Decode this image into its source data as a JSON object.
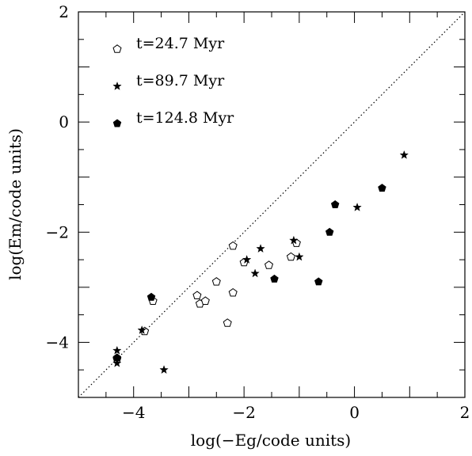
{
  "chart_data": {
    "type": "scatter",
    "xlabel": "log(−Eg/code units)",
    "ylabel": "log(Em/code units)",
    "xlim": [
      -5,
      2
    ],
    "ylim": [
      -5,
      2
    ],
    "x_ticks": [
      -4,
      -2,
      0,
      2
    ],
    "y_ticks": [
      -4,
      -2,
      0,
      2
    ],
    "x_tick_labels": [
      "−4",
      "−2",
      "0",
      "2"
    ],
    "y_tick_labels": [
      "−4",
      "−2",
      "0",
      "2"
    ],
    "grid": false,
    "legend_position": "top-left",
    "reference_line": {
      "style": "dotted",
      "description": "y = x"
    },
    "series": [
      {
        "name": "t=24.7 Myr",
        "marker": "open-pentagon",
        "points": [
          [
            -4.3,
            -4.3
          ],
          [
            -3.8,
            -3.8
          ],
          [
            -3.65,
            -3.25
          ],
          [
            -2.85,
            -3.15
          ],
          [
            -2.8,
            -3.3
          ],
          [
            -2.7,
            -3.25
          ],
          [
            -2.5,
            -2.9
          ],
          [
            -2.3,
            -3.65
          ],
          [
            -2.2,
            -2.25
          ],
          [
            -2.2,
            -3.1
          ],
          [
            -2.0,
            -2.55
          ],
          [
            -1.55,
            -2.6
          ],
          [
            -1.15,
            -2.45
          ],
          [
            -1.05,
            -2.2
          ]
        ]
      },
      {
        "name": "t=89.7 Myr",
        "marker": "star",
        "points": [
          [
            -4.3,
            -4.15
          ],
          [
            -4.3,
            -4.38
          ],
          [
            -3.85,
            -3.78
          ],
          [
            -3.45,
            -4.5
          ],
          [
            -1.95,
            -2.5
          ],
          [
            -1.8,
            -2.75
          ],
          [
            -1.7,
            -2.3
          ],
          [
            -1.1,
            -2.15
          ],
          [
            -1.0,
            -2.45
          ],
          [
            0.05,
            -1.55
          ],
          [
            0.9,
            -0.6
          ]
        ]
      },
      {
        "name": "t=124.8 Myr",
        "marker": "filled-pentagon",
        "points": [
          [
            -4.3,
            -4.28
          ],
          [
            -3.68,
            -3.18
          ],
          [
            -1.45,
            -2.85
          ],
          [
            -0.65,
            -2.9
          ],
          [
            -0.45,
            -2.0
          ],
          [
            -0.35,
            -1.5
          ],
          [
            0.5,
            -1.2
          ]
        ]
      }
    ]
  }
}
